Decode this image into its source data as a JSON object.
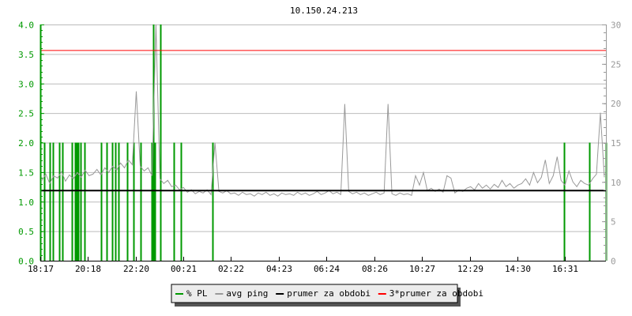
{
  "chart_data": {
    "type": "line",
    "title": "10.150.24.213",
    "x_ticks": [
      "18:17",
      "20:18",
      "22:20",
      "00:21",
      "02:22",
      "04:23",
      "06:24",
      "08:26",
      "10:27",
      "12:29",
      "14:30",
      "16:31"
    ],
    "x_range": [
      "18:17",
      "18:15"
    ],
    "y_left": {
      "range": [
        0,
        4
      ],
      "ticks": [
        "0.0",
        "0.5",
        "1.0",
        "1.5",
        "2.0",
        "2.5",
        "3.0",
        "3.5",
        "4.0"
      ],
      "color": "#009900"
    },
    "y_right": {
      "range": [
        0,
        30
      ],
      "ticks": [
        "0",
        "5",
        "10",
        "15",
        "20",
        "25",
        "30"
      ],
      "color": "#999999"
    },
    "grid": true,
    "legend_placement": "bottom",
    "series": [
      {
        "name": "% PL",
        "axis": "left",
        "color": "#009900",
        "kind": "impulses",
        "points": [
          [
            "18:17",
            2.0
          ],
          [
            "18:27",
            2.0
          ],
          [
            "18:41",
            2.0
          ],
          [
            "18:49",
            2.0
          ],
          [
            "19:05",
            2.0
          ],
          [
            "19:13",
            2.0
          ],
          [
            "19:37",
            2.0
          ],
          [
            "19:45",
            2.0
          ],
          [
            "19:49",
            2.0
          ],
          [
            "19:53",
            2.0
          ],
          [
            "20:00",
            2.0
          ],
          [
            "20:10",
            2.0
          ],
          [
            "20:52",
            2.0
          ],
          [
            "21:06",
            2.0
          ],
          [
            "21:20",
            2.0
          ],
          [
            "21:28",
            2.0
          ],
          [
            "21:36",
            2.0
          ],
          [
            "21:58",
            2.0
          ],
          [
            "22:14",
            2.0
          ],
          [
            "22:32",
            2.0
          ],
          [
            "23:00",
            2.0
          ],
          [
            "23:04",
            4.0
          ],
          [
            "23:08",
            2.0
          ],
          [
            "23:23",
            4.0
          ],
          [
            "23:57",
            2.0
          ],
          [
            "00:15",
            2.0
          ],
          [
            "01:35",
            2.0
          ],
          [
            "16:28",
            2.0
          ],
          [
            "17:32",
            2.0
          ],
          [
            "18:14",
            2.0
          ]
        ]
      },
      {
        "name": "avg ping",
        "axis": "right",
        "color": "#999999",
        "kind": "line",
        "values": [
          10.2,
          11.0,
          9.8,
          10.8,
          10.5,
          11.3,
          10.1,
          10.9,
          10.4,
          11.2,
          10.6,
          11.5,
          10.8,
          11.0,
          11.6,
          10.9,
          11.8,
          11.2,
          12.0,
          11.5,
          12.4,
          11.8,
          12.8,
          12.2,
          21.5,
          12.0,
          11.4,
          11.8,
          10.8,
          30,
          10.4,
          9.8,
          10.2,
          9.4,
          9.6,
          9.0,
          9.3,
          8.7,
          9.0,
          8.5,
          8.8,
          8.6,
          9.0,
          8.4,
          15.0,
          8.8,
          8.6,
          8.9,
          8.5,
          8.6,
          8.3,
          8.7,
          8.4,
          8.5,
          8.2,
          8.6,
          8.4,
          8.7,
          8.3,
          8.5,
          8.2,
          8.6,
          8.4,
          8.5,
          8.3,
          8.7,
          8.4,
          8.6,
          8.3,
          8.5,
          8.8,
          8.4,
          8.6,
          8.9,
          8.5,
          8.7,
          8.4,
          19.9,
          8.8,
          8.5,
          8.7,
          8.4,
          8.6,
          8.3,
          8.5,
          8.7,
          8.4,
          8.6,
          19.9,
          8.5,
          8.3,
          8.6,
          8.4,
          8.5,
          8.3,
          10.8,
          9.6,
          11.2,
          8.9,
          9.2,
          8.8,
          9.1,
          8.7,
          10.8,
          10.5,
          8.6,
          9.0,
          8.8,
          9.2,
          9.4,
          9.0,
          9.8,
          9.2,
          9.6,
          9.1,
          9.7,
          9.3,
          10.2,
          9.4,
          9.8,
          9.2,
          9.6,
          9.8,
          10.4,
          9.6,
          11.2,
          9.9,
          10.6,
          12.8,
          9.8,
          10.8,
          13.2,
          10.2,
          9.6,
          11.4,
          10.0,
          9.4,
          10.2,
          9.8,
          9.6,
          10.4,
          11.0,
          18.8,
          10.6
        ]
      },
      {
        "name": "prumer za obdobi",
        "axis": "right",
        "color": "#000000",
        "kind": "hline",
        "value": 8.9
      },
      {
        "name": "3*prumer za obdobi",
        "axis": "right",
        "color": "#ff0000",
        "kind": "hline",
        "value": 26.7
      }
    ]
  }
}
